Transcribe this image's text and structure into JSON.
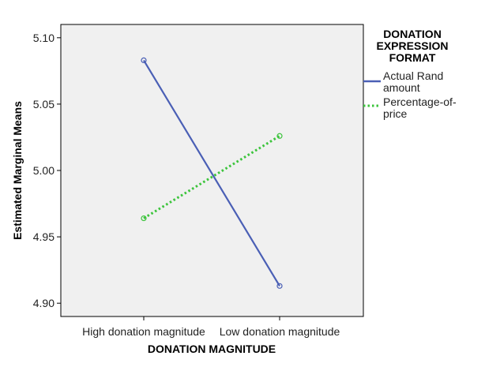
{
  "chart_data": {
    "type": "line",
    "xlabel": "DONATION MAGNITUDE",
    "ylabel": "Estimated Marginal Means",
    "categories": [
      "High donation magnitude",
      "Low donation magnitude"
    ],
    "ylim": [
      4.89,
      5.11
    ],
    "yticks": [
      "4.90",
      "4.95",
      "5.00",
      "5.05",
      "5.10"
    ],
    "legend": {
      "title": [
        "DONATION",
        "EXPRESSION",
        "FORMAT"
      ],
      "placement": "right"
    },
    "series": [
      {
        "name": "Actual Rand amount",
        "name_lines": [
          "Actual Rand",
          "amount"
        ],
        "values": [
          5.083,
          4.913
        ],
        "color": "#4a5fb5",
        "style": "solid"
      },
      {
        "name": "Percentage-of-price",
        "name_lines": [
          "Percentage-of-",
          "price"
        ],
        "values": [
          4.964,
          5.026
        ],
        "color": "#3cc43c",
        "style": "dotted"
      }
    ],
    "grid": false,
    "plot_background": "#f0f0f0"
  }
}
